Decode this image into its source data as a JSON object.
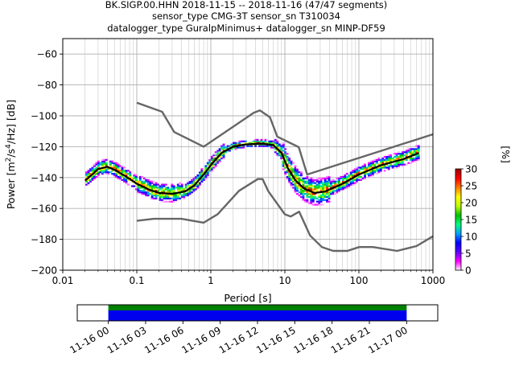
{
  "chart_data": {
    "type": "heatmap",
    "title_lines": [
      "BK.SIGP.00.HHN   2018-11-15 -- 2018-11-16  (47/47 segments)",
      "sensor_type CMG-3T sensor_sn T310034",
      "datalogger_type GuralpMinimus+ datalogger_sn MINP-DF59"
    ],
    "xlabel": "Period [s]",
    "ylabel": "Power [m²/s⁴/Hz] [dB]",
    "ylabel_parts": {
      "base": "Power [m",
      "sup1": "2",
      "mid": "/s",
      "sup2": "4",
      "tail": "/Hz] [dB]"
    },
    "xscale": "log",
    "xlim": [
      0.01,
      1000
    ],
    "ylim": [
      -200,
      -50
    ],
    "xticks": [
      0.01,
      0.1,
      1,
      10,
      100,
      1000
    ],
    "xtick_labels": [
      "0.01",
      "0.1",
      "1",
      "10",
      "100",
      "1000"
    ],
    "yticks": [
      -200,
      -180,
      -160,
      -140,
      -120,
      -100,
      -80,
      -60
    ],
    "ytick_labels": [
      "−200",
      "−180",
      "−160",
      "−140",
      "−120",
      "−100",
      "−80",
      "−60"
    ],
    "grid": true,
    "colorbar": {
      "label": "[%]",
      "range": [
        0,
        30
      ],
      "ticks": [
        0,
        5,
        10,
        15,
        20,
        25,
        30
      ],
      "tick_labels": [
        "0",
        "5",
        "10",
        "15",
        "20",
        "25",
        "30"
      ],
      "colors": [
        "#ffffff",
        "#ff00ff",
        "#6000ff",
        "#0000ff",
        "#00a0ff",
        "#00ff80",
        "#00c000",
        "#c0ff00",
        "#ffff00",
        "#ff8000",
        "#ff0000",
        "#a00000"
      ]
    },
    "series": [
      {
        "role": "noise-model-upper",
        "color": "#666666",
        "points": [
          [
            0.1,
            -91.5
          ],
          [
            0.22,
            -97.4
          ],
          [
            0.32,
            -110.5
          ],
          [
            0.8,
            -120.0
          ],
          [
            3.8,
            -98.0
          ],
          [
            4.6,
            -96.5
          ],
          [
            6.3,
            -101.0
          ],
          [
            7.9,
            -113.5
          ],
          [
            15.4,
            -120.3
          ],
          [
            20,
            -138.0
          ],
          [
            1000,
            -112.0
          ]
        ]
      },
      {
        "role": "noise-model-lower",
        "color": "#666666",
        "points": [
          [
            0.1,
            -168.0
          ],
          [
            0.17,
            -166.7
          ],
          [
            0.4,
            -166.7
          ],
          [
            0.8,
            -169.2
          ],
          [
            1.24,
            -163.7
          ],
          [
            2.4,
            -148.6
          ],
          [
            4.3,
            -141.0
          ],
          [
            5.0,
            -141.0
          ],
          [
            6.0,
            -149.0
          ],
          [
            10.0,
            -163.8
          ],
          [
            12.0,
            -165.2
          ],
          [
            15.6,
            -162.1
          ],
          [
            21.9,
            -177.5
          ],
          [
            31.6,
            -185.0
          ],
          [
            45.0,
            -187.5
          ],
          [
            70.0,
            -187.5
          ],
          [
            101.0,
            -185.0
          ],
          [
            154.0,
            -185.0
          ],
          [
            328.0,
            -187.5
          ],
          [
            600.0,
            -184.4
          ],
          [
            1000.0,
            -178.0
          ]
        ]
      },
      {
        "role": "median",
        "color": "#000000",
        "points": [
          [
            0.02,
            -142
          ],
          [
            0.025,
            -138
          ],
          [
            0.03,
            -134.5
          ],
          [
            0.04,
            -133
          ],
          [
            0.05,
            -135
          ],
          [
            0.07,
            -139
          ],
          [
            0.1,
            -144
          ],
          [
            0.15,
            -148
          ],
          [
            0.2,
            -150
          ],
          [
            0.3,
            -150.5
          ],
          [
            0.45,
            -149
          ],
          [
            0.6,
            -145
          ],
          [
            0.8,
            -138
          ],
          [
            1.0,
            -132
          ],
          [
            1.4,
            -124
          ],
          [
            2.0,
            -120
          ],
          [
            3.0,
            -118.5
          ],
          [
            5.0,
            -118
          ],
          [
            7.0,
            -119
          ],
          [
            9.0,
            -124
          ],
          [
            11.0,
            -134
          ],
          [
            14.0,
            -142
          ],
          [
            18.0,
            -147
          ],
          [
            25.0,
            -150
          ],
          [
            35.0,
            -149
          ],
          [
            60.0,
            -144
          ],
          [
            100.0,
            -138
          ],
          [
            200.0,
            -132
          ],
          [
            400.0,
            -128
          ],
          [
            650.0,
            -124
          ]
        ]
      }
    ],
    "time_axis": {
      "tick_labels": [
        "11-16 00",
        "11-16 03",
        "11-16 06",
        "11-16 09",
        "11-16 12",
        "11-16 15",
        "11-16 18",
        "11-16 21",
        "11-17 00"
      ],
      "coverage_start_hour": 0,
      "coverage_end_hour": 24,
      "window_hours": [
        -2.5,
        26.5
      ],
      "bar_colors": {
        "data": "#0000ee",
        "gaps": "#008000"
      }
    }
  }
}
